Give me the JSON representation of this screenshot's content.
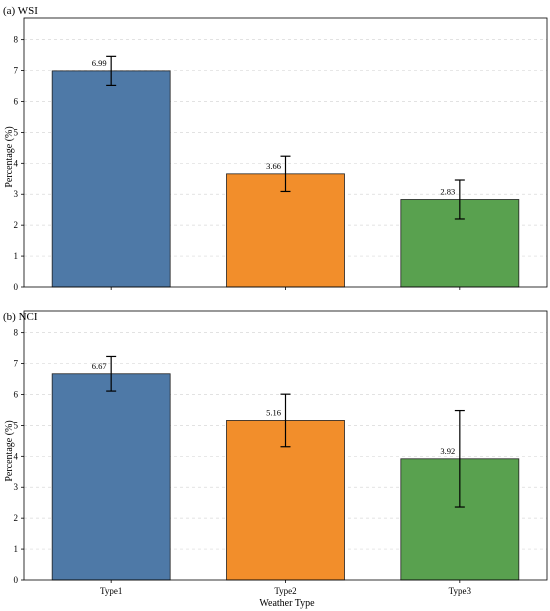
{
  "chart_data": [
    {
      "type": "bar",
      "title": "(a) WSI",
      "ylabel": "Percentage (%)",
      "xlabel": "",
      "categories": [
        "Type1",
        "Type2",
        "Type3"
      ],
      "values": [
        6.99,
        3.66,
        2.83
      ],
      "value_labels": [
        "6.99",
        "3.66",
        "2.83"
      ],
      "error": [
        0.47,
        0.57,
        0.63
      ],
      "ylim": [
        0,
        8.7
      ],
      "yticks": [
        0,
        1,
        2,
        3,
        4,
        5,
        6,
        7,
        8
      ],
      "show_xticklabels": false,
      "grid": "y-dashed",
      "colors": [
        "#4e79a7",
        "#f28e2b",
        "#59a14f"
      ]
    },
    {
      "type": "bar",
      "title": "(b) NCI",
      "ylabel": "Percentage (%)",
      "xlabel": "Weather Type",
      "categories": [
        "Type1",
        "Type2",
        "Type3"
      ],
      "values": [
        6.67,
        5.16,
        3.92
      ],
      "value_labels": [
        "6.67",
        "5.16",
        "3.92"
      ],
      "error": [
        0.56,
        0.85,
        1.56
      ],
      "ylim": [
        0,
        8.7
      ],
      "yticks": [
        0,
        1,
        2,
        3,
        4,
        5,
        6,
        7,
        8
      ],
      "show_xticklabels": true,
      "grid": "y-dashed",
      "colors": [
        "#4e79a7",
        "#f28e2b",
        "#59a14f"
      ]
    }
  ]
}
